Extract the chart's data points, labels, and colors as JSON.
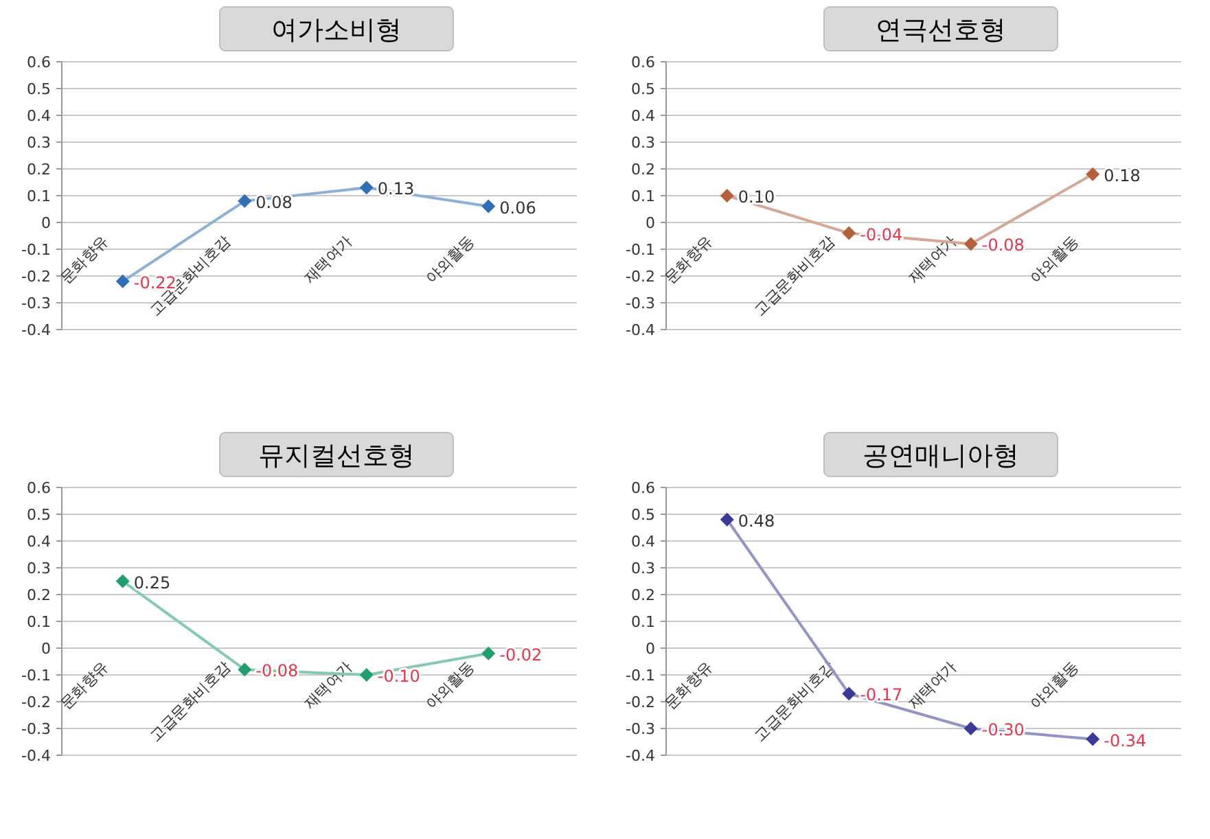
{
  "chart_data": [
    {
      "type": "line",
      "title": "여가소비형",
      "categories": [
        "문화향유",
        "고급문화비호감",
        "재택여가",
        "야외활동"
      ],
      "series": [
        {
          "color": "#2e6fb5",
          "values": [
            -0.22,
            0.08,
            0.13,
            0.06
          ],
          "value_labels": [
            "-0.22",
            "0.08",
            "0.13",
            "0.06"
          ]
        }
      ],
      "ylim": [
        -0.4,
        0.6
      ],
      "yticks": [
        -0.4,
        -0.3,
        -0.2,
        -0.1,
        0,
        0.1,
        0.2,
        0.3,
        0.4,
        0.5,
        0.6
      ],
      "grid": "y",
      "marker": "diamond"
    },
    {
      "type": "line",
      "title": "연극선호형",
      "categories": [
        "문화향유",
        "고급문화비호감",
        "재택여가",
        "야외활동"
      ],
      "series": [
        {
          "color": "#b5603a",
          "values": [
            0.1,
            -0.04,
            -0.08,
            0.18
          ],
          "value_labels": [
            "0.10",
            "-0.04",
            "-0.08",
            "0.18"
          ]
        }
      ],
      "ylim": [
        -0.4,
        0.6
      ],
      "yticks": [
        -0.4,
        -0.3,
        -0.2,
        -0.1,
        0,
        0.1,
        0.2,
        0.3,
        0.4,
        0.5,
        0.6
      ],
      "grid": "y",
      "marker": "diamond"
    },
    {
      "type": "line",
      "title": "뮤지컬선호형",
      "categories": [
        "문화향유",
        "고급문화비호감",
        "재택여가",
        "야외활동"
      ],
      "series": [
        {
          "color": "#1f9e6e",
          "values": [
            0.25,
            -0.08,
            -0.1,
            -0.02
          ],
          "value_labels": [
            "0.25",
            "-0.08",
            "-0.10",
            "-0.02"
          ]
        }
      ],
      "ylim": [
        -0.4,
        0.6
      ],
      "yticks": [
        -0.4,
        -0.3,
        -0.2,
        -0.1,
        0,
        0.1,
        0.2,
        0.3,
        0.4,
        0.5,
        0.6
      ],
      "grid": "y",
      "marker": "diamond"
    },
    {
      "type": "line",
      "title": "공연매니아형",
      "categories": [
        "문화향유",
        "고급문화비호감",
        "재택여가",
        "야외활동"
      ],
      "series": [
        {
          "color": "#3a3a9a",
          "values": [
            0.48,
            -0.17,
            -0.3,
            -0.34
          ],
          "value_labels": [
            "0.48",
            "-0.17",
            "-0.30",
            "-0.34"
          ]
        }
      ],
      "ylim": [
        -0.4,
        0.6
      ],
      "yticks": [
        -0.4,
        -0.3,
        -0.2,
        -0.1,
        0,
        0.1,
        0.2,
        0.3,
        0.4,
        0.5,
        0.6
      ],
      "grid": "y",
      "marker": "diamond"
    }
  ]
}
